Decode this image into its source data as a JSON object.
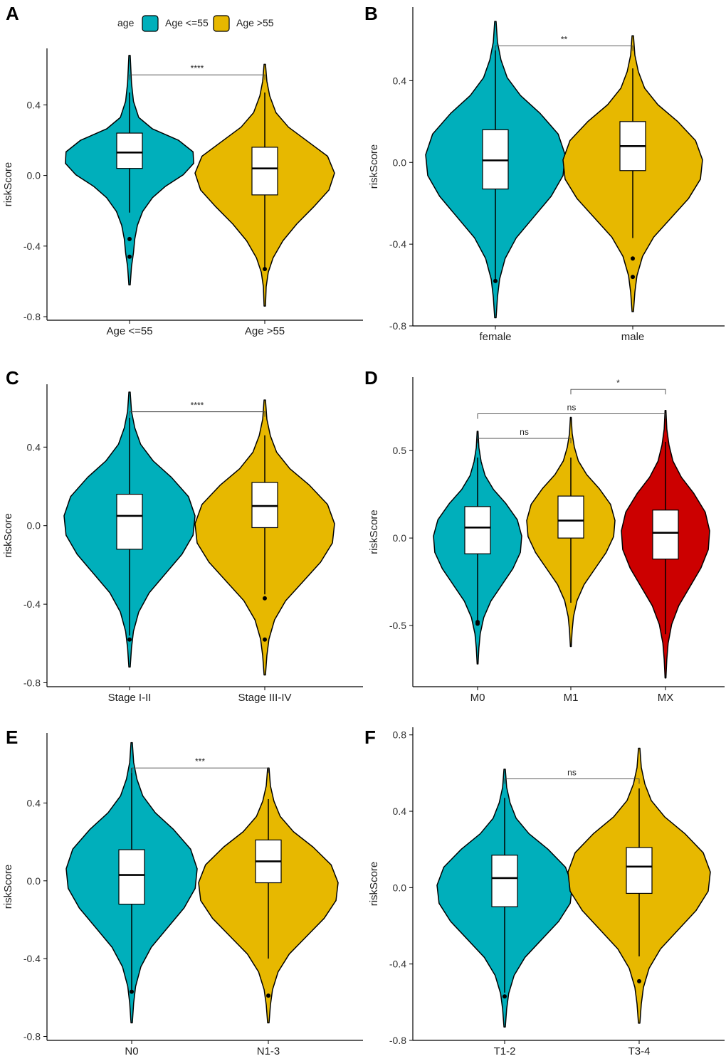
{
  "legend": {
    "title": "age",
    "entries": [
      {
        "label": "Age <=55",
        "color": "#00AFBB"
      },
      {
        "label": "Age >55",
        "color": "#E7B800"
      }
    ]
  },
  "colors": {
    "cyan": "#00AFBB",
    "gold": "#E7B800",
    "red": "#CC0000"
  },
  "chart_data": [
    {
      "type": "violin",
      "panel": "A",
      "ylabel": "riskScore",
      "ylim": [
        -0.82,
        0.72
      ],
      "yticks": [
        0.4,
        0.0,
        -0.4,
        -0.8
      ],
      "ytick_labels": [
        "0.4",
        "0.0",
        "-0.4",
        "-0.8"
      ],
      "categories": [
        "Age <=55",
        "Age >55"
      ],
      "colors": [
        "#00AFBB",
        "#E7B800"
      ],
      "box": [
        {
          "q1": 0.04,
          "median": 0.13,
          "q3": 0.24,
          "whisker_low": -0.21,
          "whisker_high": 0.47,
          "outliers": [
            -0.36,
            -0.46
          ]
        },
        {
          "q1": -0.11,
          "median": 0.04,
          "q3": 0.16,
          "whisker_low": -0.54,
          "whisker_high": 0.47,
          "outliers": [
            -0.53
          ]
        }
      ],
      "violin_range": [
        [
          -0.62,
          0.68
        ],
        [
          -0.74,
          0.63
        ]
      ],
      "comparisons": [
        {
          "groups": [
            0,
            1
          ],
          "label": "****",
          "y": 0.57
        }
      ]
    },
    {
      "type": "violin",
      "panel": "B",
      "ylabel": "riskScore",
      "ylim": [
        -0.8,
        0.76
      ],
      "yticks": [
        0.4,
        0.0,
        -0.4,
        -0.8
      ],
      "ytick_labels": [
        "0.4",
        "0.0",
        "-0.4",
        "-0.8"
      ],
      "categories": [
        "female",
        "male"
      ],
      "colors": [
        "#00AFBB",
        "#E7B800"
      ],
      "box": [
        {
          "q1": -0.13,
          "median": 0.01,
          "q3": 0.16,
          "whisker_low": -0.57,
          "whisker_high": 0.55,
          "outliers": [
            -0.58
          ]
        },
        {
          "q1": -0.04,
          "median": 0.08,
          "q3": 0.2,
          "whisker_low": -0.37,
          "whisker_high": 0.46,
          "outliers": [
            -0.47,
            -0.56
          ]
        }
      ],
      "violin_range": [
        [
          -0.76,
          0.69
        ],
        [
          -0.73,
          0.62
        ]
      ],
      "comparisons": [
        {
          "groups": [
            0,
            1
          ],
          "label": "**",
          "y": 0.57
        }
      ]
    },
    {
      "type": "violin",
      "panel": "C",
      "ylabel": "riskScore",
      "ylim": [
        -0.82,
        0.72
      ],
      "yticks": [
        0.4,
        0.0,
        -0.4,
        -0.8
      ],
      "ytick_labels": [
        "0.4",
        "0.0",
        "-0.4",
        "-0.8"
      ],
      "categories": [
        "Stage I-II",
        "Stage III-IV"
      ],
      "colors": [
        "#00AFBB",
        "#E7B800"
      ],
      "box": [
        {
          "q1": -0.12,
          "median": 0.05,
          "q3": 0.16,
          "whisker_low": -0.56,
          "whisker_high": 0.55,
          "outliers": [
            -0.58
          ]
        },
        {
          "q1": -0.01,
          "median": 0.1,
          "q3": 0.22,
          "whisker_low": -0.35,
          "whisker_high": 0.46,
          "outliers": [
            -0.37,
            -0.58
          ]
        }
      ],
      "violin_range": [
        [
          -0.72,
          0.68
        ],
        [
          -0.76,
          0.64
        ]
      ],
      "comparisons": [
        {
          "groups": [
            0,
            1
          ],
          "label": "****",
          "y": 0.58
        }
      ]
    },
    {
      "type": "violin",
      "panel": "D",
      "ylabel": "riskScore",
      "ylim": [
        -0.85,
        0.92
      ],
      "yticks": [
        0.5,
        0.0,
        -0.5
      ],
      "ytick_labels": [
        "0.5",
        "0.0",
        "-0.5"
      ],
      "categories": [
        "M0",
        "M1",
        "MX"
      ],
      "colors": [
        "#00AFBB",
        "#E7B800",
        "#CC0000"
      ],
      "box": [
        {
          "q1": -0.09,
          "median": 0.06,
          "q3": 0.18,
          "whisker_low": -0.47,
          "whisker_high": 0.46,
          "outliers": [
            -0.48,
            -0.49
          ]
        },
        {
          "q1": 0.0,
          "median": 0.1,
          "q3": 0.24,
          "whisker_low": -0.37,
          "whisker_high": 0.46,
          "outliers": []
        },
        {
          "q1": -0.12,
          "median": 0.03,
          "q3": 0.16,
          "whisker_low": -0.55,
          "whisker_high": 0.55,
          "outliers": []
        }
      ],
      "violin_range": [
        [
          -0.72,
          0.61
        ],
        [
          -0.62,
          0.69
        ],
        [
          -0.8,
          0.73
        ]
      ],
      "comparisons": [
        {
          "groups": [
            0,
            1
          ],
          "label": "ns",
          "y": 0.57
        },
        {
          "groups": [
            0,
            2
          ],
          "label": "ns",
          "y": 0.71
        },
        {
          "groups": [
            1,
            2
          ],
          "label": "*",
          "y": 0.85
        }
      ]
    },
    {
      "type": "violin",
      "panel": "E",
      "ylabel": "riskScore",
      "ylim": [
        -0.82,
        0.76
      ],
      "yticks": [
        0.4,
        0.0,
        -0.4,
        -0.8
      ],
      "ytick_labels": [
        "0.4",
        "0.0",
        "-0.4",
        "-0.8"
      ],
      "categories": [
        "N0",
        "N1-3"
      ],
      "colors": [
        "#00AFBB",
        "#E7B800"
      ],
      "box": [
        {
          "q1": -0.12,
          "median": 0.03,
          "q3": 0.16,
          "whisker_low": -0.56,
          "whisker_high": 0.58,
          "outliers": [
            -0.57
          ]
        },
        {
          "q1": -0.01,
          "median": 0.1,
          "q3": 0.21,
          "whisker_low": -0.4,
          "whisker_high": 0.42,
          "outliers": [
            -0.59
          ]
        }
      ],
      "violin_range": [
        [
          -0.73,
          0.71
        ],
        [
          -0.73,
          0.58
        ]
      ],
      "comparisons": [
        {
          "groups": [
            0,
            1
          ],
          "label": "***",
          "y": 0.58
        }
      ]
    },
    {
      "type": "violin",
      "panel": "F",
      "ylabel": "riskScore",
      "ylim": [
        -0.8,
        0.84
      ],
      "yticks": [
        0.8,
        0.4,
        0.0,
        -0.4,
        -0.8
      ],
      "ytick_labels": [
        "0.8",
        "0.4",
        "0.0",
        "-0.4",
        "-0.8"
      ],
      "categories": [
        "T1-2",
        "T3-4"
      ],
      "colors": [
        "#00AFBB",
        "#E7B800"
      ],
      "box": [
        {
          "q1": -0.1,
          "median": 0.05,
          "q3": 0.17,
          "whisker_low": -0.55,
          "whisker_high": 0.47,
          "outliers": [
            -0.57
          ]
        },
        {
          "q1": -0.03,
          "median": 0.11,
          "q3": 0.21,
          "whisker_low": -0.36,
          "whisker_high": 0.52,
          "outliers": [
            -0.49
          ]
        }
      ],
      "violin_range": [
        [
          -0.73,
          0.62
        ],
        [
          -0.71,
          0.73
        ]
      ],
      "comparisons": [
        {
          "groups": [
            0,
            1
          ],
          "label": "ns",
          "y": 0.57
        }
      ]
    }
  ]
}
